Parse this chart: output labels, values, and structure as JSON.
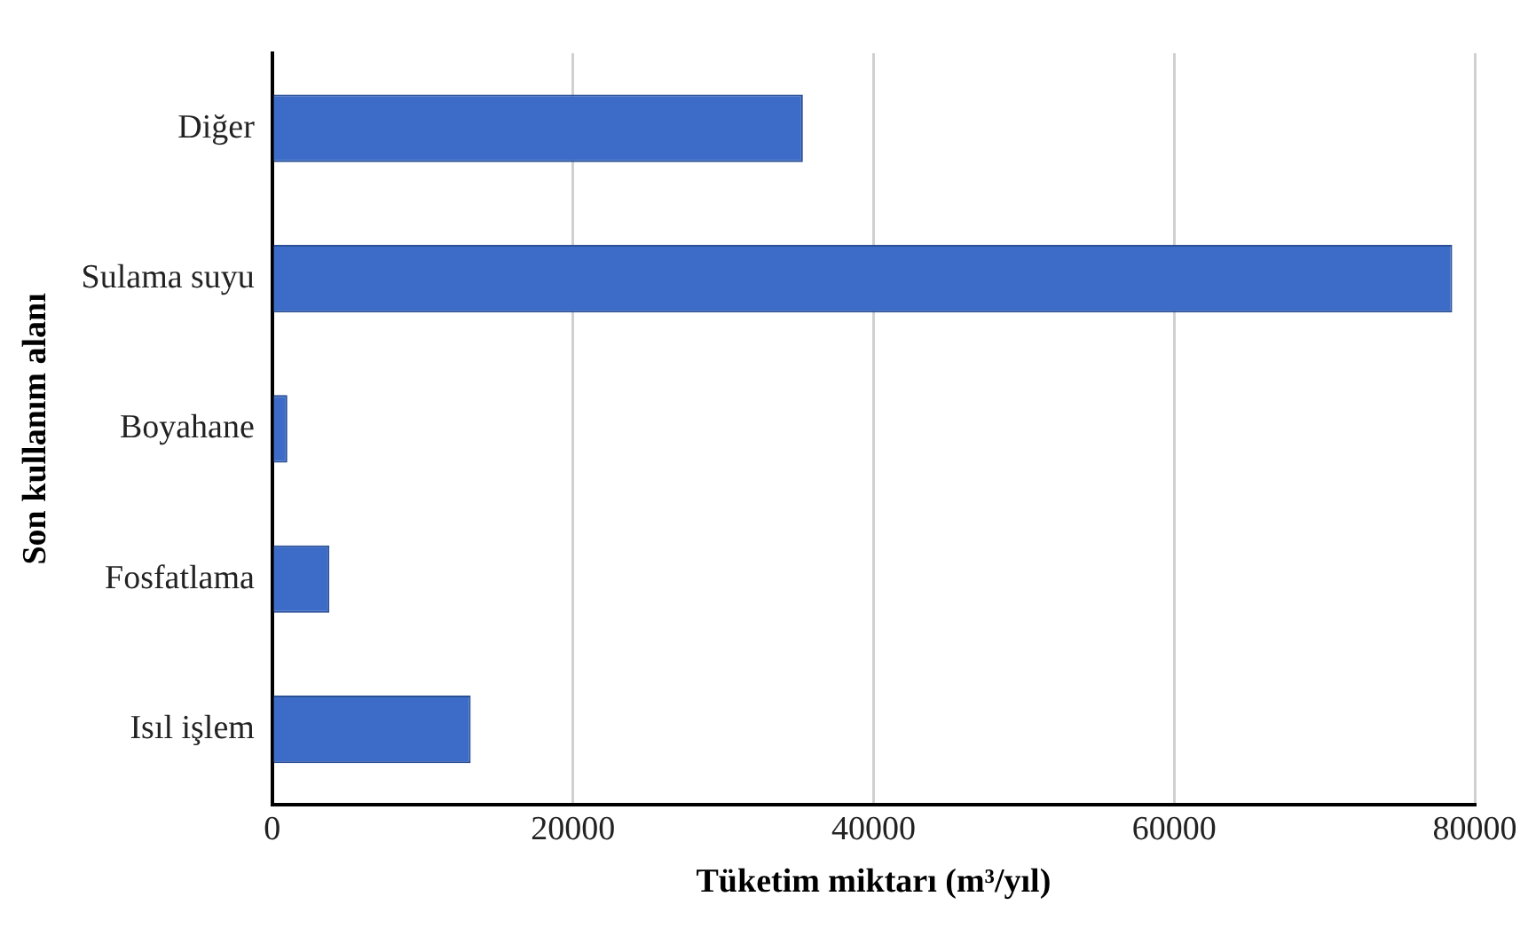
{
  "chart_data": {
    "type": "bar",
    "orientation": "horizontal",
    "xlabel": "Tüketim miktarı (m³/yıl)",
    "ylabel": "Son kullanım alanı",
    "categories": [
      "Diğer",
      "Sulama suyu",
      "Boyahane",
      "Fosfatlama",
      "Isıl işlem"
    ],
    "values": [
      35300,
      78500,
      1000,
      3800,
      13200
    ],
    "color": "#3d6cc8",
    "xlim": [
      0,
      80000
    ],
    "xticks": [
      0,
      20000,
      40000,
      60000,
      80000
    ],
    "grid": "x",
    "legend": false
  }
}
